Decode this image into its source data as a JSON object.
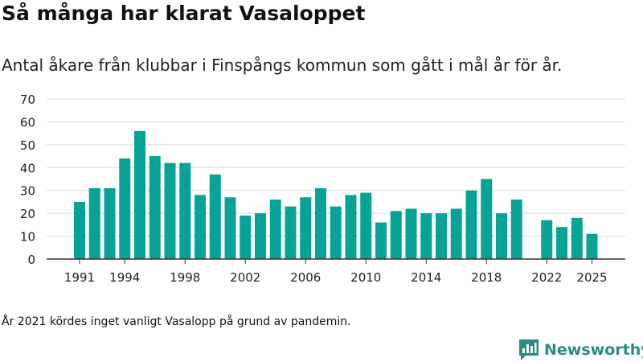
{
  "title": "Så många har klarat Vasaloppet",
  "subtitle": "Antal åkare från klubbar i Finspångs kommun som gått i mål år för år.",
  "footnote": "År 2021 kördes inget vanligt Vasalopp på grund av pandemin.",
  "brand": {
    "name": "Newsworthy",
    "icon": "newsworthy-logo-icon"
  },
  "colors": {
    "bar": "#08a397",
    "grid": "#d9d9d9",
    "axis": "#333333",
    "text": "#222222",
    "brand": "#2c8c84"
  },
  "chart_data": {
    "type": "bar",
    "title": "Så många har klarat Vasaloppet",
    "xlabel": "",
    "ylabel": "",
    "ylim": [
      0,
      70
    ],
    "yticks": [
      0,
      10,
      20,
      30,
      40,
      50,
      60,
      70
    ],
    "xticks": [
      1991,
      1994,
      1998,
      2002,
      2006,
      2010,
      2014,
      2018,
      2022,
      2025
    ],
    "grid": true,
    "categories": [
      1991,
      1992,
      1993,
      1994,
      1995,
      1996,
      1997,
      1998,
      1999,
      2000,
      2001,
      2002,
      2003,
      2004,
      2005,
      2006,
      2007,
      2008,
      2009,
      2010,
      2011,
      2012,
      2013,
      2014,
      2015,
      2016,
      2017,
      2018,
      2019,
      2020,
      2021,
      2022,
      2023,
      2024,
      2025
    ],
    "values": [
      25,
      31,
      31,
      44,
      56,
      45,
      42,
      42,
      28,
      37,
      27,
      19,
      20,
      26,
      23,
      27,
      31,
      23,
      28,
      29,
      16,
      21,
      22,
      20,
      20,
      22,
      30,
      35,
      20,
      26,
      null,
      17,
      14,
      18,
      11
    ]
  }
}
